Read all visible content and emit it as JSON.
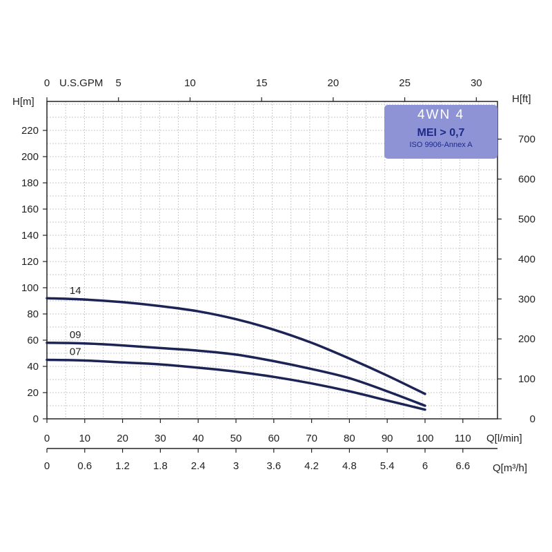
{
  "chart_data": {
    "type": "line",
    "title": "4WN 4",
    "badge_line1": "MEI > 0,7",
    "badge_line2": "ISO 9906-Annex A",
    "ylabel_left": "H[m]",
    "ylabel_right": "H[ft]",
    "xlabel_bottom": "Q[l/min]",
    "xlabel_second": "Q[m³/h]",
    "xlabel_top": "U.S.GPM",
    "xlim": [
      0,
      120
    ],
    "ylim": [
      0,
      240
    ],
    "y_ticks": [
      "0",
      "20",
      "40",
      "60",
      "80",
      "100",
      "120",
      "140",
      "160",
      "180",
      "200",
      "220"
    ],
    "x_ticks": [
      "0",
      "10",
      "20",
      "30",
      "40",
      "50",
      "60",
      "70",
      "80",
      "90",
      "100",
      "110"
    ],
    "m3h_ticks": [
      "0",
      "0.6",
      "1.2",
      "1.8",
      "2.4",
      "3",
      "3.6",
      "4.2",
      "4.8",
      "5.4",
      "6",
      "6.6"
    ],
    "gpm_ticks": [
      "0",
      "5",
      "10",
      "15",
      "20",
      "25",
      "30"
    ],
    "ft_ticks": [
      "0",
      "100",
      "200",
      "300",
      "400",
      "500",
      "600",
      "700"
    ],
    "grid": true,
    "series": [
      {
        "name": "14",
        "x": [
          0,
          10,
          20,
          30,
          40,
          50,
          60,
          70,
          80,
          90,
          100
        ],
        "y": [
          92,
          91,
          89,
          86,
          82,
          76,
          68,
          58,
          46,
          33,
          19
        ]
      },
      {
        "name": "09",
        "x": [
          0,
          10,
          20,
          30,
          40,
          50,
          60,
          70,
          80,
          90,
          100
        ],
        "y": [
          58,
          57.5,
          56,
          54,
          52,
          49,
          44,
          38,
          31,
          21,
          10
        ]
      },
      {
        "name": "07",
        "x": [
          0,
          10,
          20,
          30,
          40,
          50,
          60,
          70,
          80,
          90,
          100
        ],
        "y": [
          45,
          44.5,
          43,
          41.5,
          39,
          36,
          32,
          27,
          21,
          14,
          7
        ]
      }
    ]
  }
}
